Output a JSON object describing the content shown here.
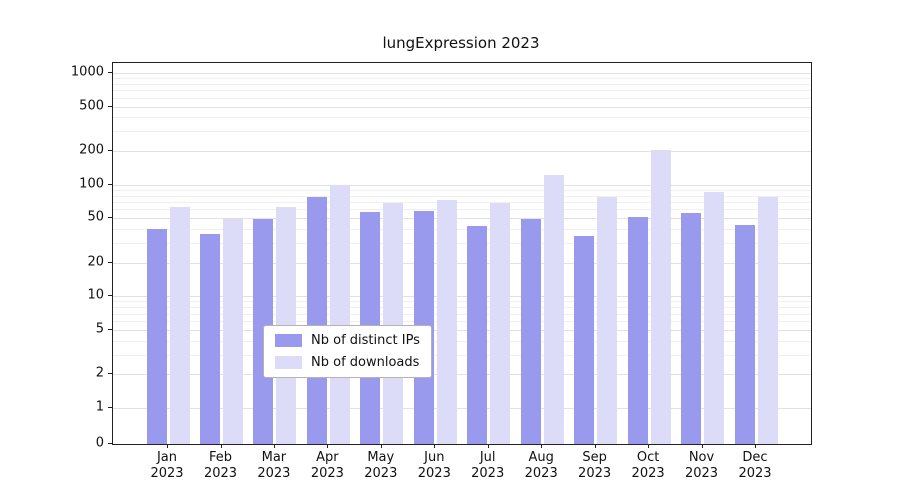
{
  "chart_data": {
    "type": "bar",
    "title": "lungExpression 2023",
    "categories": [
      "Jan 2023",
      "Feb 2023",
      "Mar 2023",
      "Apr 2023",
      "May 2023",
      "Jun 2023",
      "Jul 2023",
      "Aug 2023",
      "Sep 2023",
      "Oct 2023",
      "Nov 2023",
      "Dec 2023"
    ],
    "series": [
      {
        "name": "Nb of distinct IPs",
        "color": "#9999ed",
        "values": [
          40,
          36,
          49,
          77,
          57,
          58,
          43,
          49,
          35,
          51,
          56,
          44
        ]
      },
      {
        "name": "Nb of downloads",
        "color": "#dcdcf9",
        "values": [
          63,
          50,
          63,
          100,
          69,
          73,
          69,
          123,
          78,
          203,
          86,
          78
        ]
      }
    ],
    "yscale": "symlog",
    "ylim": [
      0,
      1000
    ],
    "yticks": [
      0,
      1,
      2,
      5,
      10,
      20,
      50,
      100,
      200,
      500,
      1000
    ],
    "xlabel": "",
    "ylabel": "",
    "grid": true,
    "legend_position": "lower center",
    "colors": {
      "grid_major": "#e2e2e2",
      "grid_minor": "#f0f0f0",
      "axis": "#222222"
    }
  }
}
